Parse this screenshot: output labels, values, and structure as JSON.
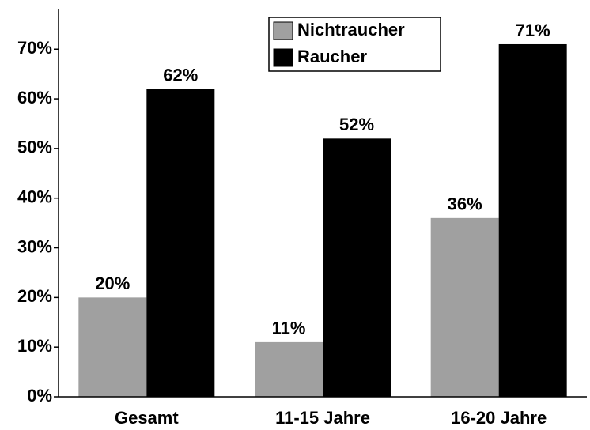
{
  "chart_data": {
    "type": "bar",
    "categories": [
      "Gesamt",
      "11-15 Jahre",
      "16-20 Jahre"
    ],
    "series": [
      {
        "name": "Nichtraucher",
        "color": "#a0a0a0",
        "values": [
          20,
          11,
          36
        ],
        "value_labels": [
          "20%",
          "11%",
          "36%"
        ]
      },
      {
        "name": "Raucher",
        "color": "#000000",
        "values": [
          62,
          52,
          71
        ],
        "value_labels": [
          "62%",
          "52%",
          "71%"
        ]
      }
    ],
    "ylim": [
      0,
      78
    ],
    "yticks": [
      {
        "value": 0,
        "label": "0%"
      },
      {
        "value": 10,
        "label": "10%"
      },
      {
        "value": 20,
        "label": "20%"
      },
      {
        "value": 30,
        "label": "30%"
      },
      {
        "value": 40,
        "label": "40%"
      },
      {
        "value": 50,
        "label": "50%"
      },
      {
        "value": 60,
        "label": "60%"
      },
      {
        "value": 70,
        "label": "70%"
      }
    ],
    "grid": false,
    "legend": "top"
  }
}
